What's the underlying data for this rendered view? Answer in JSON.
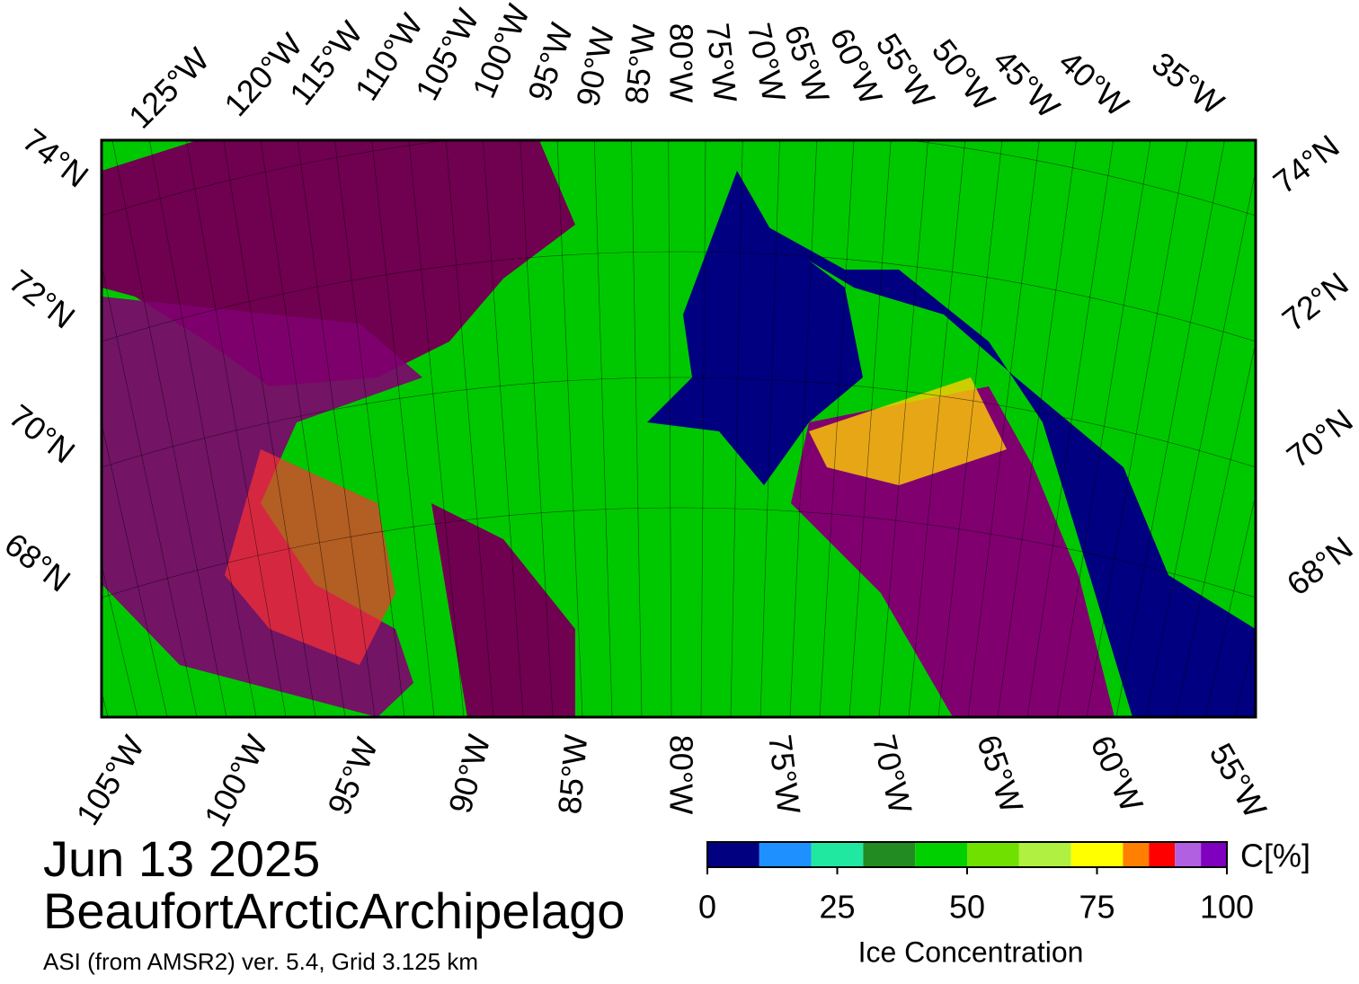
{
  "map": {
    "top_labels": [
      "125°W",
      "120°W",
      "115°W",
      "110°W",
      "105°W",
      "100°W",
      "95°W",
      "90°W",
      "85°W",
      "80°W",
      "75°W",
      "70°W",
      "65°W",
      "60°W",
      "55°W",
      "50°W",
      "45°W",
      "40°W",
      "35°W"
    ],
    "bottom_labels": [
      "105°W",
      "100°W",
      "95°W",
      "90°W",
      "85°W",
      "80°W",
      "75°W",
      "70°W",
      "65°W",
      "60°W",
      "55°W"
    ],
    "left_labels": [
      "74°N",
      "72°N",
      "70°N",
      "68°N"
    ],
    "right_labels": [
      "74°N",
      "72°N",
      "70°N",
      "68°N"
    ]
  },
  "date": "Jun 13 2025",
  "title": "BeaufortArcticArchipelago",
  "subtitle": "ASI (from AMSR2) ver. 5.4,  Grid 3.125 km",
  "colorbar": {
    "lim": [
      0,
      100
    ],
    "bounds": [
      0,
      10,
      20,
      30,
      40,
      50,
      60,
      70,
      80,
      85,
      90,
      95,
      100
    ],
    "colors": [
      "#000080",
      "#1e90ff",
      "#20e8a0",
      "#228b22",
      "#00d000",
      "#70e000",
      "#b0f040",
      "#ffff00",
      "#ff8000",
      "#ff0000",
      "#b060e0",
      "#8000c0"
    ],
    "ticks": [
      0,
      25,
      50,
      75,
      100
    ],
    "unit_label": "C[%]",
    "label": "Ice Concentration"
  }
}
